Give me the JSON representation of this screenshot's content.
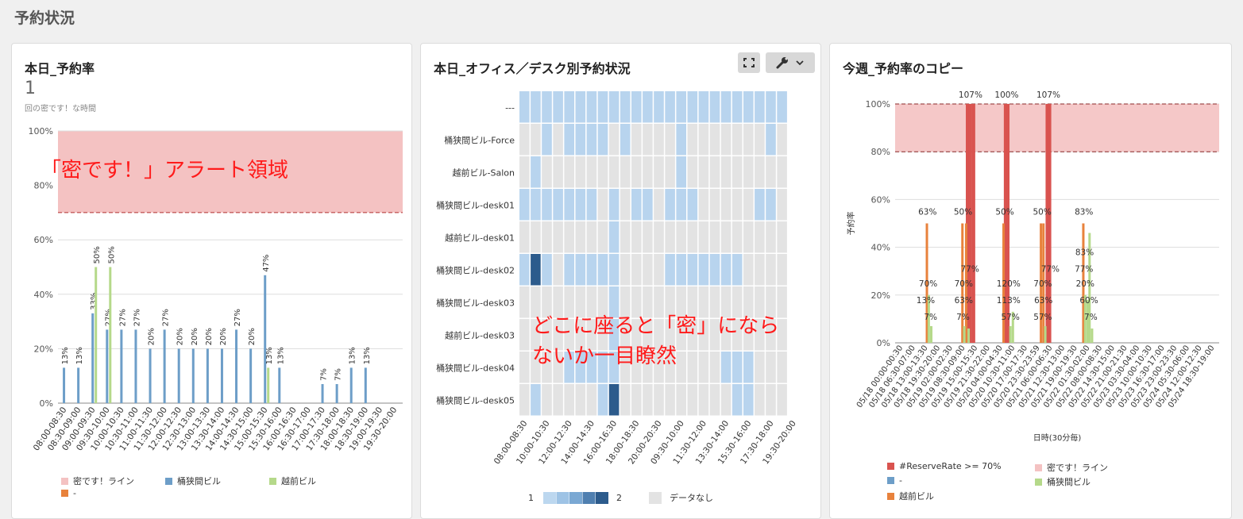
{
  "page": {
    "title": "予約状況"
  },
  "panel1": {
    "title": "本日_予約率",
    "kpi_value": "1",
    "kpi_subtitle": "回の密です！な時間",
    "annotation": "「密です！」アラート領域",
    "legend": [
      {
        "label": "密です！ライン",
        "color": "#f4c2c2"
      },
      {
        "label": "桶狭間ビル",
        "color": "#6d9ec8"
      },
      {
        "label": "越前ビル",
        "color": "#b5d98a"
      },
      {
        "label": "-",
        "color": "#e8823c"
      }
    ],
    "chart_data": {
      "type": "bar",
      "title": "本日_予約率",
      "ylim": [
        0,
        100
      ],
      "yticks": [
        "0%",
        "20%",
        "40%",
        "60%",
        "80%",
        "100%"
      ],
      "alert_band": [
        70,
        100
      ],
      "categories": [
        "08:00-08:30",
        "08:30-09:00",
        "09:00-09:30",
        "09:30-10:00",
        "10:00-10:30",
        "10:30-11:00",
        "11:00-11:30",
        "11:30-12:00",
        "12:00-12:30",
        "12:30-13:00",
        "13:00-13:30",
        "13:30-14:00",
        "14:00-14:30",
        "14:30-15:00",
        "15:00-15:30",
        "15:30-16:00",
        "16:00-16:30",
        "16:30-17:00",
        "17:00-17:30",
        "17:30-18:00",
        "18:00-18:30",
        "18:30-19:00",
        "19:00-19:30",
        "19:30-20:00"
      ],
      "series": [
        {
          "name": "桶狭間ビル",
          "color": "#6d9ec8",
          "values": [
            13,
            13,
            33,
            27,
            27,
            27,
            20,
            27,
            20,
            20,
            20,
            20,
            27,
            20,
            47,
            13,
            0,
            0,
            7,
            7,
            13,
            13,
            0,
            0
          ]
        },
        {
          "name": "越前ビル",
          "color": "#b5d98a",
          "values": [
            0,
            0,
            50,
            50,
            0,
            0,
            0,
            0,
            0,
            0,
            0,
            0,
            0,
            0,
            13,
            0,
            0,
            0,
            0,
            0,
            0,
            0,
            0,
            0
          ]
        }
      ]
    }
  },
  "panel2": {
    "title": "本日_オフィス／デスク別予約状況",
    "annotation_line1": "どこに座ると「密」になら",
    "annotation_line2": "ないか一目瞭然",
    "legend_min": "1",
    "legend_max": "2",
    "legend_nodata": "データなし",
    "chart_data": {
      "type": "heatmap",
      "title": "本日_オフィス／デスク別予約状況",
      "rows": [
        "---",
        "桶狭間ビル-Force",
        "越前ビル-Salon",
        "桶狭間ビル-desk01",
        "越前ビル-desk01",
        "桶狭間ビル-desk02",
        "桶狭間ビル-desk03",
        "越前ビル-desk03",
        "桶狭間ビル-desk04",
        "桶狭間ビル-desk05"
      ],
      "columns": [
        "08:00-08:30",
        "08:30-09:00",
        "09:00-09:30",
        "09:30-10:00",
        "10:00-10:30",
        "10:30-11:00",
        "11:00-11:30",
        "11:30-12:00",
        "12:00-12:30",
        "12:30-13:00",
        "13:00-13:30",
        "13:30-14:00",
        "14:00-14:30",
        "14:30-15:00",
        "15:00-15:30",
        "15:30-16:00",
        "16:00-16:30",
        "16:30-17:00",
        "17:00-17:30",
        "17:30-18:00",
        "18:00-18:30",
        "18:30-19:00",
        "19:00-19:30",
        "19:30-20:00"
      ],
      "xtick_labels": [
        "08:00-08:30",
        "10:00-10:30",
        "12:00-12:30",
        "14:00-14:30",
        "16:00-16:30",
        "18:00-18:30",
        "20:00-20:30",
        "09:30-10:00",
        "11:30-12:00",
        "13:30-14:00",
        "15:30-16:00",
        "17:30-18:00",
        "19:30-20:00"
      ],
      "value_range": [
        1,
        2
      ],
      "values": [
        [
          1,
          1,
          1,
          1,
          1,
          1,
          1,
          1,
          1,
          1,
          1,
          1,
          1,
          1,
          1,
          1,
          1,
          1,
          1,
          1,
          1,
          1,
          1,
          1
        ],
        [
          0,
          0,
          1,
          0,
          1,
          1,
          1,
          1,
          0,
          1,
          0,
          0,
          0,
          0,
          1,
          0,
          0,
          0,
          0,
          0,
          0,
          0,
          1,
          0
        ],
        [
          0,
          1,
          0,
          0,
          0,
          0,
          0,
          0,
          0,
          0,
          0,
          0,
          0,
          0,
          1,
          0,
          0,
          0,
          0,
          0,
          0,
          0,
          0,
          0
        ],
        [
          1,
          1,
          1,
          1,
          1,
          1,
          1,
          0,
          1,
          0,
          1,
          1,
          0,
          1,
          1,
          1,
          0,
          0,
          0,
          0,
          0,
          1,
          1,
          0
        ],
        [
          0,
          0,
          0,
          0,
          0,
          0,
          0,
          0,
          1,
          0,
          0,
          0,
          0,
          0,
          0,
          0,
          0,
          0,
          0,
          0,
          0,
          0,
          0,
          0
        ],
        [
          1,
          2,
          1,
          0,
          1,
          1,
          1,
          1,
          1,
          0,
          0,
          0,
          0,
          1,
          1,
          1,
          1,
          1,
          1,
          1,
          0,
          0,
          0,
          0
        ],
        [
          0,
          0,
          0,
          0,
          0,
          0,
          0,
          0,
          1,
          0,
          0,
          0,
          0,
          0,
          0,
          0,
          0,
          0,
          0,
          0,
          0,
          0,
          0,
          0
        ],
        [
          0,
          0,
          0,
          0,
          0,
          0,
          0,
          0,
          1,
          0,
          0,
          0,
          0,
          0,
          0,
          0,
          0,
          0,
          0,
          0,
          0,
          0,
          0,
          0
        ],
        [
          0,
          0,
          0,
          0,
          1,
          1,
          1,
          1,
          1,
          0,
          0,
          0,
          0,
          0,
          0,
          0,
          0,
          0,
          1,
          1,
          1,
          0,
          0,
          0
        ],
        [
          0,
          1,
          0,
          0,
          0,
          0,
          0,
          1,
          2,
          0,
          0,
          0,
          0,
          0,
          0,
          0,
          0,
          0,
          0,
          1,
          1,
          0,
          0,
          0
        ]
      ]
    }
  },
  "panel3": {
    "title": "今週_予約率のコピー",
    "legend": [
      {
        "label": "#ReserveRate >= 70%",
        "color": "#d9534f"
      },
      {
        "label": "密です！ライン",
        "color": "#f4c2c2"
      },
      {
        "label": "-",
        "color": "#6d9ec8"
      },
      {
        "label": "桶狭間ビル",
        "color": "#b5d98a"
      },
      {
        "label": "越前ビル",
        "color": "#e8823c"
      }
    ],
    "chart_data": {
      "type": "bar",
      "title": "今週_予約率のコピー",
      "xlabel": "日時(30分毎)",
      "ylabel": "予約率",
      "ylim": [
        0,
        100
      ],
      "yticks": [
        "0%",
        "20%",
        "40%",
        "60%",
        "80%",
        "100%"
      ],
      "alert_band": [
        80,
        100
      ],
      "xtick_labels": [
        "05/18 00:00-00:30",
        "05/18 06:30-07:00",
        "05/18 13:00-13:30",
        "05/18 19:30-20:00",
        "05/19 02:00-02:30",
        "05/19 08:30-09:00",
        "05/19 15:00-15:30",
        "05/19 21:30-22:00",
        "05/20 04:00-04:30",
        "05/20 10:30-11:00",
        "05/20 17:00-17:30",
        "05/20 23:30-23:59",
        "05/21 06:00-06:30",
        "05/21 12:30-13:00",
        "05/21 19:00-19:30",
        "05/22 01:30-02:00",
        "05/22 08:00-08:30",
        "05/22 14:30-15:00",
        "05/22 21:00-21:30",
        "05/23 03:30-04:00",
        "05/23 10:00-10:30",
        "05/23 16:30-17:00",
        "05/23 23:00-23:30",
        "05/24 05:30-06:00",
        "05/24 12:00-12:30",
        "05/24 18:30-19:00"
      ],
      "series": [
        {
          "name": "#ReserveRate >= 70%",
          "color": "#d9534f",
          "points": [
            {
              "x": 5.3,
              "y": 100
            },
            {
              "x": 5.55,
              "y": 100
            },
            {
              "x": 5.8,
              "y": 100
            },
            {
              "x": 8.35,
              "y": 100
            },
            {
              "x": 8.55,
              "y": 100
            },
            {
              "x": 11.7,
              "y": 100
            },
            {
              "x": 11.9,
              "y": 100
            }
          ]
        },
        {
          "name": "越前ビル",
          "color": "#e8823c",
          "points": [
            {
              "x": 2.05,
              "y": 50
            },
            {
              "x": 4.9,
              "y": 50
            },
            {
              "x": 5.2,
              "y": 50
            },
            {
              "x": 8.2,
              "y": 50
            },
            {
              "x": 11.2,
              "y": 50
            },
            {
              "x": 11.4,
              "y": 50
            },
            {
              "x": 14.6,
              "y": 50
            }
          ]
        },
        {
          "name": "桶狭間ビル",
          "color": "#b5d98a",
          "points": [
            {
              "x": 2.2,
              "y": 20
            },
            {
              "x": 2.4,
              "y": 7
            },
            {
              "x": 5.05,
              "y": 7
            },
            {
              "x": 5.4,
              "y": 6
            },
            {
              "x": 8.75,
              "y": 7
            },
            {
              "x": 8.95,
              "y": 13
            },
            {
              "x": 11.55,
              "y": 7
            },
            {
              "x": 14.75,
              "y": 20
            },
            {
              "x": 14.95,
              "y": 18
            },
            {
              "x": 15.1,
              "y": 46
            },
            {
              "x": 15.3,
              "y": 6
            }
          ]
        }
      ],
      "data_labels": [
        {
          "text": "63%",
          "x": 2.1,
          "y": 53
        },
        {
          "text": "70%",
          "x": 2.15,
          "y": 23
        },
        {
          "text": "13%",
          "x": 1.95,
          "y": 16
        },
        {
          "text": "7%",
          "x": 2.35,
          "y": 9
        },
        {
          "text": "50%",
          "x": 4.95,
          "y": 53
        },
        {
          "text": "77%",
          "x": 5.5,
          "y": 29
        },
        {
          "text": "70%",
          "x": 5.0,
          "y": 23
        },
        {
          "text": "63%",
          "x": 5.0,
          "y": 16
        },
        {
          "text": "7%",
          "x": 4.95,
          "y": 9
        },
        {
          "text": "107%",
          "x": 5.55,
          "y": 102
        },
        {
          "text": "50%",
          "x": 8.3,
          "y": 53
        },
        {
          "text": "120%",
          "x": 8.6,
          "y": 23
        },
        {
          "text": "113%",
          "x": 8.6,
          "y": 16
        },
        {
          "text": "57%",
          "x": 8.75,
          "y": 9
        },
        {
          "text": "100%",
          "x": 8.45,
          "y": 102
        },
        {
          "text": "50%",
          "x": 11.3,
          "y": 53
        },
        {
          "text": "77%",
          "x": 11.95,
          "y": 29
        },
        {
          "text": "70%",
          "x": 11.35,
          "y": 23
        },
        {
          "text": "63%",
          "x": 11.4,
          "y": 16
        },
        {
          "text": "57%",
          "x": 11.35,
          "y": 9
        },
        {
          "text": "107%",
          "x": 11.8,
          "y": 102
        },
        {
          "text": "83%",
          "x": 14.65,
          "y": 53
        },
        {
          "text": "83%",
          "x": 14.7,
          "y": 36
        },
        {
          "text": "77%",
          "x": 14.65,
          "y": 29
        },
        {
          "text": "20%",
          "x": 14.75,
          "y": 23
        },
        {
          "text": "60%",
          "x": 15.05,
          "y": 16
        },
        {
          "text": "7%",
          "x": 15.2,
          "y": 9
        }
      ]
    }
  }
}
